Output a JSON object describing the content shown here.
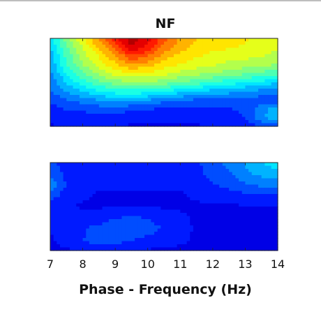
{
  "chart_data": {
    "type": "heatmap",
    "title": "NF",
    "xlabel": "Phase - Frequency (Hz)",
    "ylabel": "",
    "xlim": [
      7,
      14
    ],
    "xticks": [
      "7",
      "8",
      "9",
      "10",
      "11",
      "12",
      "13",
      "14"
    ],
    "colormap": "jet",
    "panels": [
      {
        "name": "upper",
        "description_levels": "intensity grid, rows listed top to bottom, columns at x = 7..14 step 0.5",
        "values": [
          [
            0.35,
            0.5,
            0.62,
            0.74,
            0.86,
            0.96,
            0.9,
            0.8,
            0.72,
            0.68,
            0.66,
            0.64,
            0.63,
            0.62,
            0.6
          ],
          [
            0.32,
            0.47,
            0.58,
            0.68,
            0.8,
            0.92,
            0.86,
            0.76,
            0.7,
            0.66,
            0.64,
            0.63,
            0.62,
            0.6,
            0.58
          ],
          [
            0.3,
            0.44,
            0.55,
            0.63,
            0.72,
            0.82,
            0.78,
            0.7,
            0.66,
            0.63,
            0.61,
            0.6,
            0.59,
            0.58,
            0.56
          ],
          [
            0.28,
            0.42,
            0.52,
            0.6,
            0.66,
            0.72,
            0.7,
            0.65,
            0.62,
            0.6,
            0.58,
            0.56,
            0.55,
            0.54,
            0.52
          ],
          [
            0.26,
            0.38,
            0.47,
            0.54,
            0.59,
            0.62,
            0.62,
            0.59,
            0.56,
            0.54,
            0.52,
            0.5,
            0.48,
            0.46,
            0.44
          ],
          [
            0.24,
            0.33,
            0.4,
            0.46,
            0.5,
            0.52,
            0.52,
            0.5,
            0.47,
            0.45,
            0.42,
            0.4,
            0.38,
            0.36,
            0.33
          ],
          [
            0.22,
            0.28,
            0.33,
            0.37,
            0.4,
            0.41,
            0.4,
            0.38,
            0.35,
            0.33,
            0.31,
            0.3,
            0.28,
            0.26,
            0.24
          ],
          [
            0.18,
            0.22,
            0.25,
            0.28,
            0.3,
            0.29,
            0.28,
            0.24,
            0.23,
            0.22,
            0.21,
            0.2,
            0.2,
            0.2,
            0.19
          ],
          [
            0.16,
            0.18,
            0.19,
            0.2,
            0.2,
            0.19,
            0.18,
            0.17,
            0.16,
            0.16,
            0.16,
            0.17,
            0.19,
            0.25,
            0.3
          ],
          [
            0.14,
            0.15,
            0.15,
            0.15,
            0.15,
            0.14,
            0.14,
            0.14,
            0.14,
            0.14,
            0.14,
            0.15,
            0.18,
            0.26,
            0.34
          ],
          [
            0.12,
            0.13,
            0.13,
            0.13,
            0.13,
            0.12,
            0.12,
            0.12,
            0.12,
            0.12,
            0.13,
            0.13,
            0.15,
            0.18,
            0.2
          ]
        ]
      },
      {
        "name": "lower",
        "values": [
          [
            0.18,
            0.15,
            0.14,
            0.14,
            0.14,
            0.14,
            0.14,
            0.14,
            0.15,
            0.17,
            0.2,
            0.24,
            0.28,
            0.32,
            0.36
          ],
          [
            0.22,
            0.16,
            0.14,
            0.13,
            0.13,
            0.13,
            0.13,
            0.13,
            0.14,
            0.16,
            0.19,
            0.22,
            0.26,
            0.29,
            0.31
          ],
          [
            0.26,
            0.17,
            0.14,
            0.13,
            0.13,
            0.13,
            0.13,
            0.13,
            0.13,
            0.15,
            0.17,
            0.19,
            0.22,
            0.24,
            0.25
          ],
          [
            0.2,
            0.15,
            0.13,
            0.12,
            0.12,
            0.12,
            0.12,
            0.12,
            0.12,
            0.13,
            0.14,
            0.15,
            0.16,
            0.16,
            0.16
          ],
          [
            0.15,
            0.13,
            0.12,
            0.12,
            0.12,
            0.12,
            0.12,
            0.12,
            0.12,
            0.12,
            0.12,
            0.12,
            0.12,
            0.12,
            0.12
          ],
          [
            0.13,
            0.13,
            0.14,
            0.15,
            0.17,
            0.18,
            0.17,
            0.15,
            0.13,
            0.12,
            0.12,
            0.12,
            0.12,
            0.12,
            0.12
          ],
          [
            0.13,
            0.15,
            0.17,
            0.19,
            0.21,
            0.22,
            0.2,
            0.17,
            0.14,
            0.12,
            0.12,
            0.12,
            0.12,
            0.12,
            0.12
          ],
          [
            0.12,
            0.14,
            0.17,
            0.22,
            0.2,
            0.18,
            0.16,
            0.14,
            0.13,
            0.12,
            0.12,
            0.12,
            0.12,
            0.12,
            0.12
          ],
          [
            0.12,
            0.12,
            0.13,
            0.14,
            0.14,
            0.13,
            0.12,
            0.12,
            0.12,
            0.12,
            0.12,
            0.12,
            0.12,
            0.12,
            0.12
          ]
        ]
      }
    ]
  }
}
